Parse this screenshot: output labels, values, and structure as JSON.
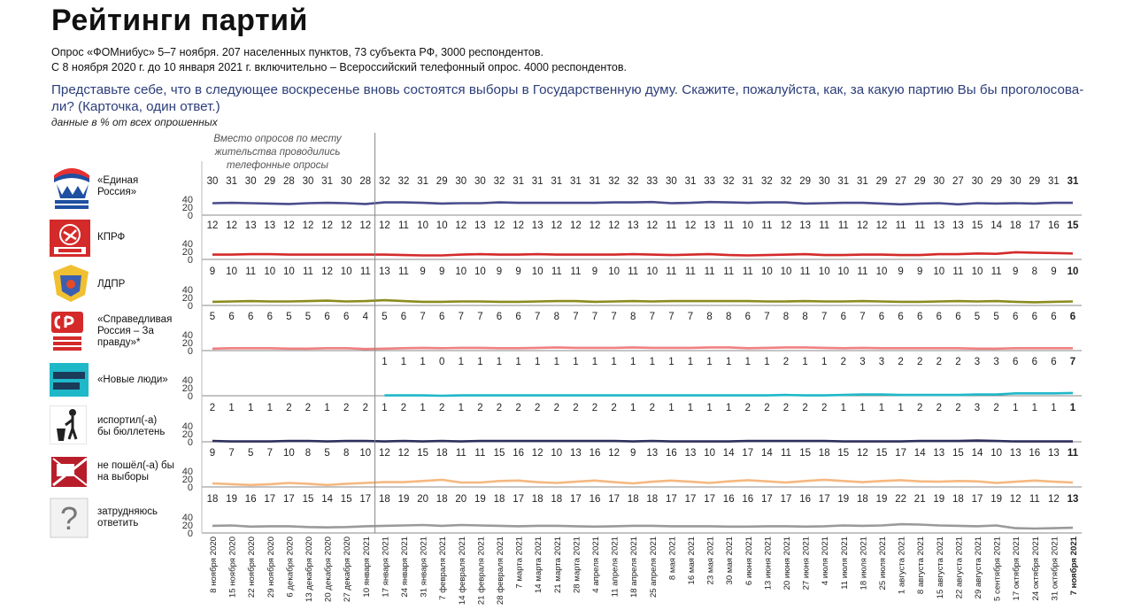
{
  "page": {
    "title": "Рейтинги партий",
    "subtitle1": "Опрос «ФОМнибус» 5–7 ноября. 207 населенных пунктов, 73 субъекта РФ, 3000 респондентов.",
    "subtitle2": "С 8 ноября 2020 г. до 10 января 2021 г. включительно – Всероссийский телефонный опрос. 4000 респондентов.",
    "question": "Представьте себе, что в следующее воскресенье вновь состоятся выборы в Государственную думу. Скажите, пожалуйста, как, за какую партию Вы бы проголосова-ли? (Карточка, один ответ.)",
    "note": "данные в % от всех опрошенных",
    "phone_note": "Вместо опросов по месту жительства проводились телефонные опросы"
  },
  "chart_data": {
    "type": "line",
    "title": "Рейтинги партий",
    "y_ticks": [
      0,
      20,
      40
    ],
    "ylim": [
      0,
      40
    ],
    "phone_poll_until_index": 9,
    "categories": [
      "8 ноября 2020",
      "15 ноября 2020",
      "22 ноября 2020",
      "29 ноября 2020",
      "6 декабря 2020",
      "13 декабря 2020",
      "20 декабря 2020",
      "27 декабря 2020",
      "10 января 2021",
      "17 января 2021",
      "24 января 2021",
      "31 января 2021",
      "7 февраля 2021",
      "14 февраля 2021",
      "21 февраля 2021",
      "28 февраля 2021",
      "7 марта 2021",
      "14 марта 2021",
      "21 марта 2021",
      "28 марта 2021",
      "4 апреля 2021",
      "11 апреля 2021",
      "18 апреля 2021",
      "25 апреля 2021",
      "8 мая 2021",
      "16 мая 2021",
      "23 мая 2021",
      "30 мая 2021",
      "6 июня 2021",
      "13 июня 2021",
      "20 июня 2021",
      "27 июня 2021",
      "4 июля 2021",
      "11 июля 2021",
      "18 июля 2021",
      "25 июля 2021",
      "1 августа 2021",
      "8 августа 2021",
      "15 августа 2021",
      "22 августа 2021",
      "29 августа 2021",
      "5 сентября 2021",
      "17 октября 2021",
      "24 октября 2021",
      "31 октября 2021",
      "7 ноября 2021"
    ],
    "series": [
      {
        "name": "«Единая Россия»",
        "color": "#4a4d8c",
        "logo": "united-russia-bear",
        "values": [
          30,
          31,
          30,
          29,
          28,
          30,
          31,
          30,
          28,
          32,
          32,
          31,
          29,
          30,
          30,
          32,
          31,
          31,
          31,
          31,
          31,
          32,
          32,
          33,
          30,
          31,
          33,
          32,
          31,
          32,
          32,
          29,
          30,
          31,
          31,
          29,
          27,
          29,
          30,
          27,
          30,
          29,
          30,
          29,
          31,
          31
        ]
      },
      {
        "name": "КПРФ",
        "color": "#d42a2a",
        "logo": "kprf-emblem",
        "values": [
          12,
          12,
          13,
          13,
          12,
          12,
          12,
          12,
          12,
          12,
          11,
          10,
          10,
          12,
          13,
          12,
          12,
          13,
          12,
          12,
          12,
          12,
          13,
          12,
          11,
          12,
          13,
          11,
          10,
          11,
          12,
          13,
          11,
          11,
          12,
          12,
          11,
          11,
          13,
          13,
          15,
          14,
          18,
          17,
          16,
          15
        ]
      },
      {
        "name": "ЛДПР",
        "color": "#8a8c1e",
        "logo": "ldpr-emblem",
        "values": [
          9,
          10,
          11,
          10,
          10,
          11,
          12,
          10,
          11,
          13,
          11,
          9,
          9,
          10,
          10,
          9,
          9,
          10,
          11,
          11,
          9,
          10,
          11,
          10,
          11,
          11,
          11,
          11,
          11,
          10,
          10,
          11,
          10,
          10,
          11,
          10,
          9,
          9,
          10,
          11,
          10,
          11,
          9,
          8,
          9,
          10
        ]
      },
      {
        "name": "«Справедливая Россия – За правду»*",
        "color": "#f08080",
        "logo": "sr-logo",
        "values": [
          5,
          6,
          6,
          6,
          5,
          5,
          6,
          6,
          4,
          5,
          6,
          7,
          6,
          7,
          7,
          6,
          6,
          7,
          8,
          7,
          7,
          7,
          8,
          7,
          7,
          7,
          8,
          8,
          6,
          7,
          8,
          8,
          7,
          6,
          7,
          6,
          6,
          6,
          6,
          6,
          5,
          5,
          6,
          6,
          6,
          6
        ]
      },
      {
        "name": "«Новые люди»",
        "color": "#1fb8c8",
        "logo": "new-people-logo",
        "start_index": 9,
        "values": [
          null,
          null,
          null,
          null,
          null,
          null,
          null,
          null,
          null,
          1,
          1,
          1,
          0,
          1,
          1,
          1,
          1,
          1,
          1,
          1,
          1,
          1,
          1,
          1,
          1,
          1,
          1,
          1,
          1,
          1,
          2,
          1,
          1,
          2,
          3,
          3,
          2,
          2,
          2,
          2,
          3,
          3,
          6,
          6,
          6,
          7
        ]
      },
      {
        "name": "испортил(-а) бы бюллетень",
        "color": "#2e2f5e",
        "logo": "trash-bin-icon",
        "values": [
          2,
          1,
          1,
          1,
          2,
          2,
          1,
          2,
          2,
          1,
          2,
          1,
          2,
          1,
          2,
          2,
          2,
          2,
          2,
          2,
          2,
          2,
          1,
          2,
          1,
          1,
          1,
          1,
          2,
          2,
          2,
          2,
          2,
          1,
          1,
          1,
          1,
          2,
          2,
          2,
          3,
          2,
          1,
          1,
          1,
          1
        ]
      },
      {
        "name": "не пошёл(-а) бы на выборы",
        "color": "#f5b880",
        "logo": "crossed-ballot-icon",
        "values": [
          9,
          7,
          5,
          7,
          10,
          8,
          5,
          8,
          10,
          12,
          12,
          15,
          18,
          11,
          11,
          15,
          16,
          12,
          10,
          13,
          16,
          12,
          9,
          13,
          16,
          13,
          10,
          14,
          17,
          14,
          11,
          15,
          18,
          15,
          12,
          15,
          17,
          14,
          13,
          15,
          14,
          10,
          13,
          16,
          13,
          11
        ]
      },
      {
        "name": "затрудняюсь ответить",
        "color": "#9a9a9a",
        "logo": "question-icon",
        "values": [
          18,
          19,
          16,
          17,
          17,
          15,
          14,
          15,
          17,
          18,
          19,
          20,
          18,
          20,
          19,
          18,
          17,
          18,
          18,
          17,
          16,
          17,
          18,
          18,
          17,
          17,
          17,
          16,
          16,
          17,
          17,
          16,
          17,
          19,
          18,
          19,
          22,
          21,
          19,
          18,
          17,
          19,
          12,
          11,
          12,
          13
        ]
      }
    ]
  }
}
